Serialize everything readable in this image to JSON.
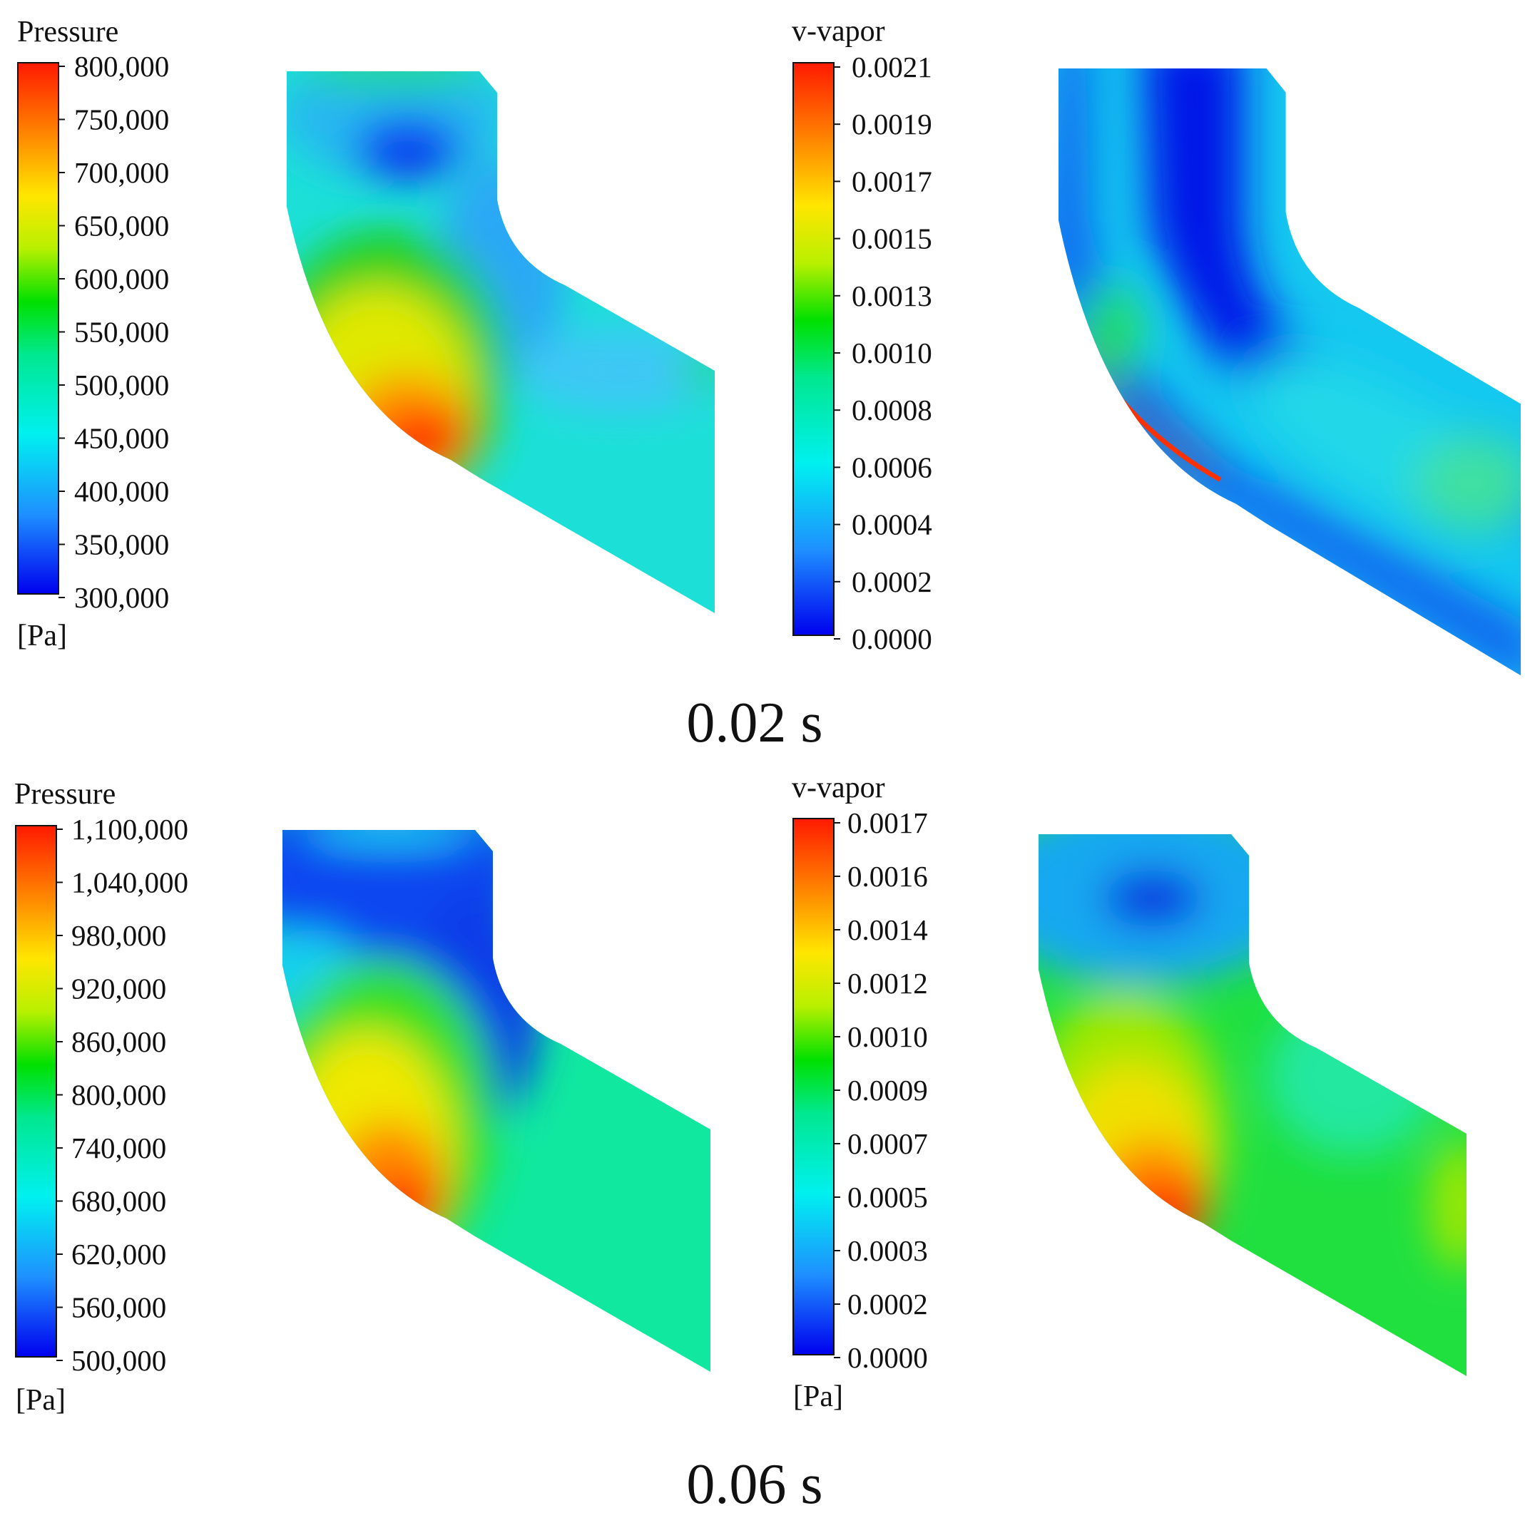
{
  "rows": [
    {
      "time_label": "0.02 s",
      "pressure_legend": {
        "title": "Pressure",
        "unit": "[Pa]",
        "ticks": [
          "800,000",
          "750,000",
          "700,000",
          "650,000",
          "600,000",
          "550,000",
          "500,000",
          "450,000",
          "400,000",
          "350,000",
          "300,000"
        ]
      },
      "vapor_legend": {
        "title": "v-vapor",
        "unit": "",
        "ticks": [
          "0.0021",
          "0.0019",
          "0.0017",
          "0.0015",
          "0.0013",
          "0.0010",
          "0.0008",
          "0.0006",
          "0.0004",
          "0.0002",
          "0.0000"
        ]
      },
      "pressure_field": {
        "high_color": "#ff2a00",
        "low_color": "#0a2cf0",
        "base_color": "#17e6cf"
      },
      "vapor_field": {
        "high_color": "#ff3000",
        "low_color": "#0014e6",
        "base_color": "#22d9f0"
      }
    },
    {
      "time_label": "0.06 s",
      "pressure_legend": {
        "title": "Pressure",
        "unit": "[Pa]",
        "ticks": [
          "1,100,000",
          "1,040,000",
          "980,000",
          "920,000",
          "860,000",
          "800,000",
          "740,000",
          "680,000",
          "620,000",
          "560,000",
          "500,000"
        ]
      },
      "vapor_legend": {
        "title": "v-vapor",
        "unit": "[Pa]",
        "ticks": [
          "0.0017",
          "0.0016",
          "0.0014",
          "0.0012",
          "0.0010",
          "0.0009",
          "0.0007",
          "0.0005",
          "0.0003",
          "0.0002",
          "0.0000"
        ]
      },
      "pressure_field": {
        "high_color": "#ff2a00",
        "low_color": "#0a30e8",
        "base_color": "#10e890"
      },
      "vapor_field": {
        "high_color": "#ff2a00",
        "low_color": "#0a30e8",
        "base_color": "#1ee83c"
      }
    }
  ]
}
